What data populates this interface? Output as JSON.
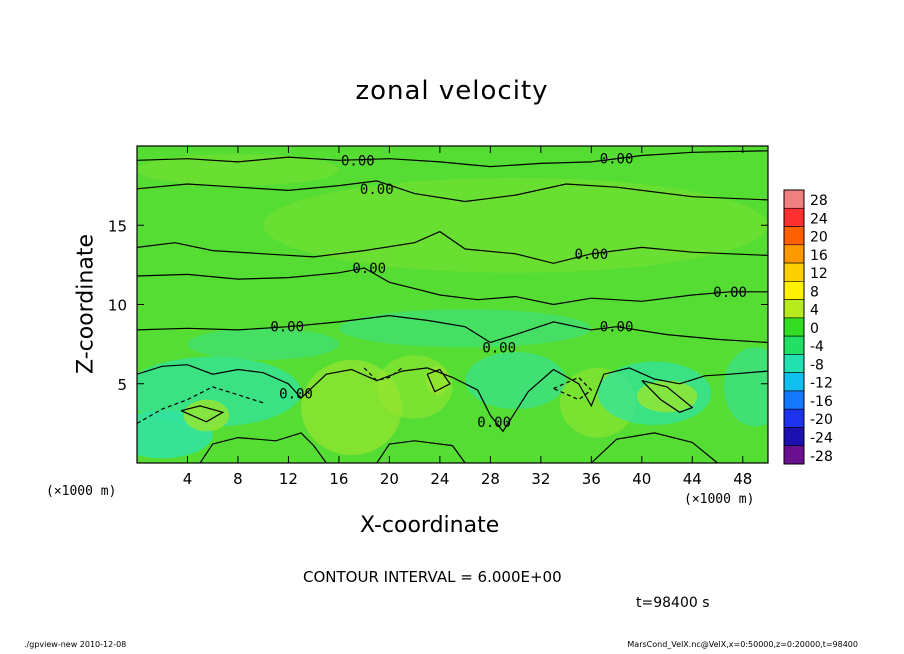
{
  "chart_data": {
    "type": "contour",
    "title": "zonal velocity",
    "xlabel": "X-coordinate",
    "ylabel": "Z-coordinate",
    "x_unit_label": "(×1000 m)",
    "x_ticks": [
      4,
      8,
      12,
      16,
      20,
      24,
      28,
      32,
      36,
      40,
      44,
      48
    ],
    "y_ticks": [
      5,
      10,
      15
    ],
    "xlim": [
      0,
      50
    ],
    "ylim": [
      0,
      20
    ],
    "contour_interval_label": "CONTOUR INTERVAL = 6.000E+00",
    "time_label": "t=98400 s",
    "contour_value_label": "0.00",
    "contour_labels": [
      {
        "x": 17.5,
        "y": 19.1
      },
      {
        "x": 38.0,
        "y": 19.2
      },
      {
        "x": 19.0,
        "y": 17.3
      },
      {
        "x": 36.0,
        "y": 13.2
      },
      {
        "x": 18.4,
        "y": 12.3
      },
      {
        "x": 47.0,
        "y": 10.8
      },
      {
        "x": 11.9,
        "y": 8.6
      },
      {
        "x": 38.0,
        "y": 8.6
      },
      {
        "x": 28.7,
        "y": 7.3
      },
      {
        "x": 12.6,
        "y": 4.4
      },
      {
        "x": 28.3,
        "y": 2.6
      }
    ],
    "colorbar": {
      "levels": [
        28,
        24,
        20,
        16,
        12,
        8,
        4,
        0,
        -4,
        -8,
        -12,
        -16,
        -20,
        -24,
        -28
      ],
      "colors": [
        "#f08080",
        "#ff3030",
        "#ff6000",
        "#ff9900",
        "#ffd000",
        "#fff200",
        "#b8ea20",
        "#33dd22",
        "#22e066",
        "#22e0b0",
        "#12c0f0",
        "#1478ff",
        "#1d33ee",
        "#1c10b0",
        "#6a0f90"
      ]
    },
    "field_description_colors": {
      "background": "#55dd33",
      "negative_weak": "#33e3a0",
      "positive_weak": "#99e630"
    }
  },
  "footer": {
    "left": "./gpview-new  2010-12-08",
    "right": "MarsCond_VelX.nc@VelX,x=0:50000,z=0:20000,t=98400"
  }
}
